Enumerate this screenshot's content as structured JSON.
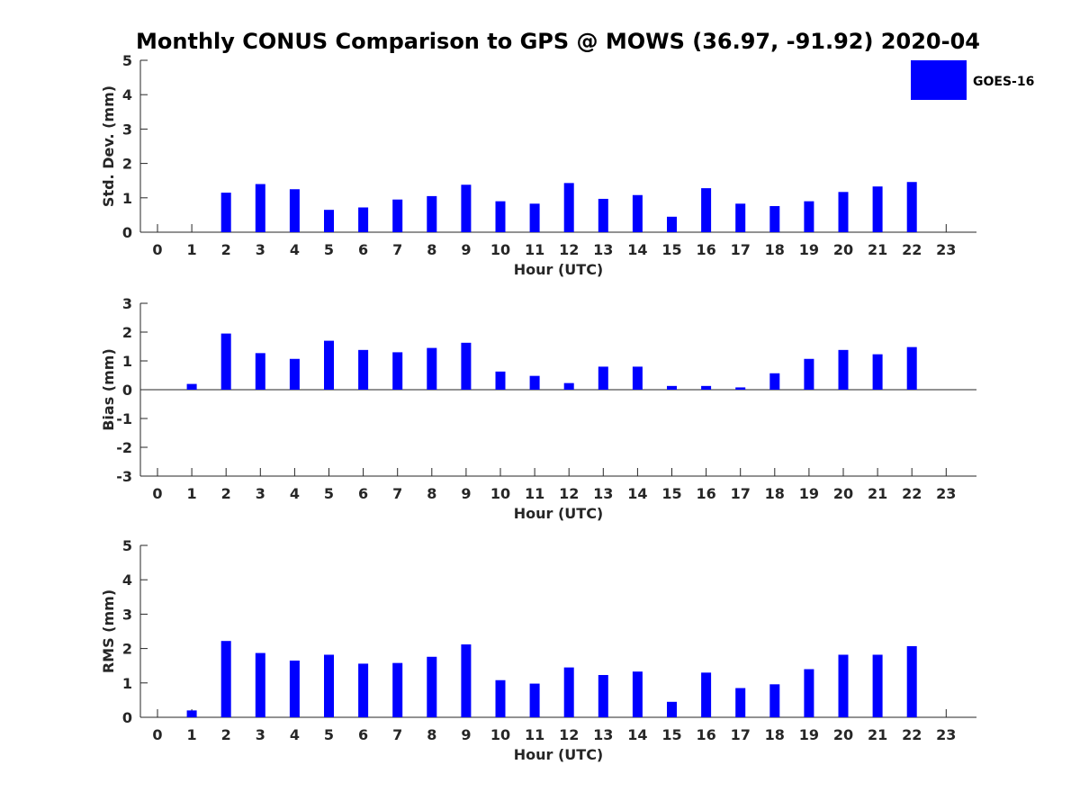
{
  "chart_data": {
    "title": "Monthly CONUS Comparison to GPS @ MOWS (36.97, -91.92) 2020-04",
    "legend": {
      "label": "GOES-16",
      "color": "#0000ff",
      "placement": "top-right (outside plot)"
    },
    "panels": [
      {
        "type": "bar",
        "name": "std-dev",
        "ylabel": "Std. Dev. (mm)",
        "xlabel": "Hour (UTC)",
        "ylim": [
          0,
          5
        ],
        "yticks": [
          0,
          1,
          2,
          3,
          4,
          5
        ],
        "x": [
          0,
          1,
          2,
          3,
          4,
          5,
          6,
          7,
          8,
          9,
          10,
          11,
          12,
          13,
          14,
          15,
          16,
          17,
          18,
          19,
          20,
          21,
          22,
          23
        ],
        "values": [
          null,
          null,
          1.15,
          1.4,
          1.25,
          0.65,
          0.72,
          0.95,
          1.05,
          1.38,
          0.9,
          0.83,
          1.43,
          0.97,
          1.08,
          0.45,
          1.28,
          0.83,
          0.76,
          0.9,
          1.17,
          1.33,
          1.46,
          null
        ]
      },
      {
        "type": "bar",
        "name": "bias",
        "ylabel": "Bias (mm)",
        "xlabel": "Hour (UTC)",
        "ylim": [
          -3,
          3
        ],
        "yticks": [
          -3,
          -2,
          -1,
          0,
          1,
          2,
          3
        ],
        "zero_line": true,
        "x": [
          0,
          1,
          2,
          3,
          4,
          5,
          6,
          7,
          8,
          9,
          10,
          11,
          12,
          13,
          14,
          15,
          16,
          17,
          18,
          19,
          20,
          21,
          22,
          23
        ],
        "values": [
          null,
          0.2,
          1.95,
          1.27,
          1.07,
          1.7,
          1.38,
          1.3,
          1.45,
          1.63,
          0.63,
          0.48,
          0.23,
          0.8,
          0.8,
          0.13,
          0.13,
          0.08,
          0.57,
          1.07,
          1.38,
          1.23,
          1.48,
          null
        ]
      },
      {
        "type": "bar",
        "name": "rms",
        "ylabel": "RMS (mm)",
        "xlabel": "Hour (UTC)",
        "ylim": [
          0,
          5
        ],
        "yticks": [
          0,
          1,
          2,
          3,
          4,
          5
        ],
        "x": [
          0,
          1,
          2,
          3,
          4,
          5,
          6,
          7,
          8,
          9,
          10,
          11,
          12,
          13,
          14,
          15,
          16,
          17,
          18,
          19,
          20,
          21,
          22,
          23
        ],
        "values": [
          null,
          0.2,
          2.22,
          1.87,
          1.65,
          1.82,
          1.56,
          1.58,
          1.76,
          2.12,
          1.08,
          0.98,
          1.45,
          1.23,
          1.33,
          0.45,
          1.3,
          0.85,
          0.96,
          1.4,
          1.82,
          1.82,
          2.07,
          null
        ]
      }
    ]
  }
}
